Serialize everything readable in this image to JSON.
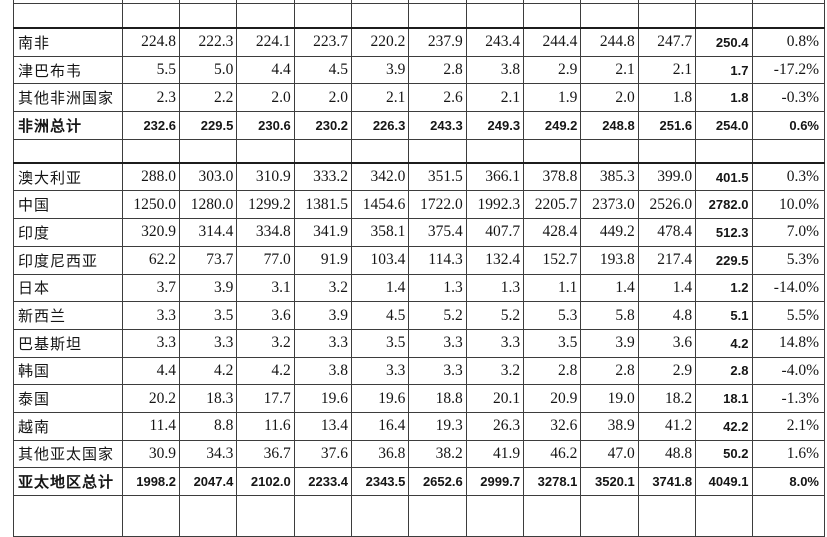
{
  "colors": {
    "background": "#ffffff",
    "grid_border": "#3d3d3d",
    "section_border": "#1c1c1c",
    "text": "#151515"
  },
  "table": {
    "value_column_count": 11,
    "rows": [
      {
        "kind": "clip-top"
      },
      {
        "kind": "blank"
      },
      {
        "kind": "data",
        "section_start": true,
        "label": "南非",
        "values": [
          "224.8",
          "222.3",
          "224.1",
          "223.7",
          "220.2",
          "237.9",
          "243.4",
          "244.4",
          "244.8",
          "247.7",
          "250.4"
        ],
        "pct": "0.8%"
      },
      {
        "kind": "data",
        "label": "津巴布韦",
        "values": [
          "5.5",
          "5.0",
          "4.4",
          "4.5",
          "3.9",
          "2.8",
          "3.8",
          "2.9",
          "2.1",
          "2.1",
          "1.7"
        ],
        "pct": "-17.2%"
      },
      {
        "kind": "data",
        "label": "其他非洲国家",
        "values": [
          "2.3",
          "2.2",
          "2.0",
          "2.0",
          "2.1",
          "2.6",
          "2.1",
          "1.9",
          "2.0",
          "1.8",
          "1.8"
        ],
        "pct": "-0.3%"
      },
      {
        "kind": "total",
        "label": "非洲总计",
        "values": [
          "232.6",
          "229.5",
          "230.6",
          "230.2",
          "226.3",
          "243.3",
          "249.3",
          "249.2",
          "248.8",
          "251.6",
          "254.0"
        ],
        "pct": "0.6%"
      },
      {
        "kind": "spacer"
      },
      {
        "kind": "data",
        "section_start": true,
        "label": "澳大利亚",
        "values": [
          "288.0",
          "303.0",
          "310.9",
          "333.2",
          "342.0",
          "351.5",
          "366.1",
          "378.8",
          "385.3",
          "399.0",
          "401.5"
        ],
        "pct": "0.3%"
      },
      {
        "kind": "data",
        "label": "中国",
        "values": [
          "1250.0",
          "1280.0",
          "1299.2",
          "1381.5",
          "1454.6",
          "1722.0",
          "1992.3",
          "2205.7",
          "2373.0",
          "2526.0",
          "2782.0"
        ],
        "pct": "10.0%"
      },
      {
        "kind": "data",
        "label": "印度",
        "values": [
          "320.9",
          "314.4",
          "334.8",
          "341.9",
          "358.1",
          "375.4",
          "407.7",
          "428.4",
          "449.2",
          "478.4",
          "512.3"
        ],
        "pct": "7.0%"
      },
      {
        "kind": "data",
        "label": "印度尼西亚",
        "values": [
          "62.2",
          "73.7",
          "77.0",
          "91.9",
          "103.4",
          "114.3",
          "132.4",
          "152.7",
          "193.8",
          "217.4",
          "229.5"
        ],
        "pct": "5.3%"
      },
      {
        "kind": "data",
        "label": "日本",
        "values": [
          "3.7",
          "3.9",
          "3.1",
          "3.2",
          "1.4",
          "1.3",
          "1.3",
          "1.1",
          "1.4",
          "1.4",
          "1.2"
        ],
        "pct": "-14.0%"
      },
      {
        "kind": "data",
        "label": "新西兰",
        "values": [
          "3.3",
          "3.5",
          "3.6",
          "3.9",
          "4.5",
          "5.2",
          "5.2",
          "5.3",
          "5.8",
          "4.8",
          "5.1"
        ],
        "pct": "5.5%"
      },
      {
        "kind": "data",
        "label": "巴基斯坦",
        "values": [
          "3.3",
          "3.3",
          "3.2",
          "3.3",
          "3.5",
          "3.3",
          "3.3",
          "3.5",
          "3.9",
          "3.6",
          "4.2"
        ],
        "pct": "14.8%"
      },
      {
        "kind": "data",
        "label": "韩国",
        "values": [
          "4.4",
          "4.2",
          "4.2",
          "3.8",
          "3.3",
          "3.3",
          "3.2",
          "2.8",
          "2.8",
          "2.9",
          "2.8"
        ],
        "pct": "-4.0%"
      },
      {
        "kind": "data",
        "label": "泰国",
        "values": [
          "20.2",
          "18.3",
          "17.7",
          "19.6",
          "19.6",
          "18.8",
          "20.1",
          "20.9",
          "19.0",
          "18.2",
          "18.1"
        ],
        "pct": "-1.3%"
      },
      {
        "kind": "data",
        "label": "越南",
        "values": [
          "11.4",
          "8.8",
          "11.6",
          "13.4",
          "16.4",
          "19.3",
          "26.3",
          "32.6",
          "38.9",
          "41.2",
          "42.2"
        ],
        "pct": "2.1%"
      },
      {
        "kind": "data",
        "label": "其他亚太国家",
        "values": [
          "30.9",
          "34.3",
          "36.7",
          "37.6",
          "36.8",
          "38.2",
          "41.9",
          "46.2",
          "47.0",
          "48.8",
          "50.2"
        ],
        "pct": "1.6%"
      },
      {
        "kind": "total",
        "label": "亚太地区总计",
        "values": [
          "1998.2",
          "2047.4",
          "2102.0",
          "2233.4",
          "2343.5",
          "2652.6",
          "2999.7",
          "3278.1",
          "3520.1",
          "3741.8",
          "4049.1"
        ],
        "pct": "8.0%"
      },
      {
        "kind": "clip-bottom"
      }
    ]
  }
}
